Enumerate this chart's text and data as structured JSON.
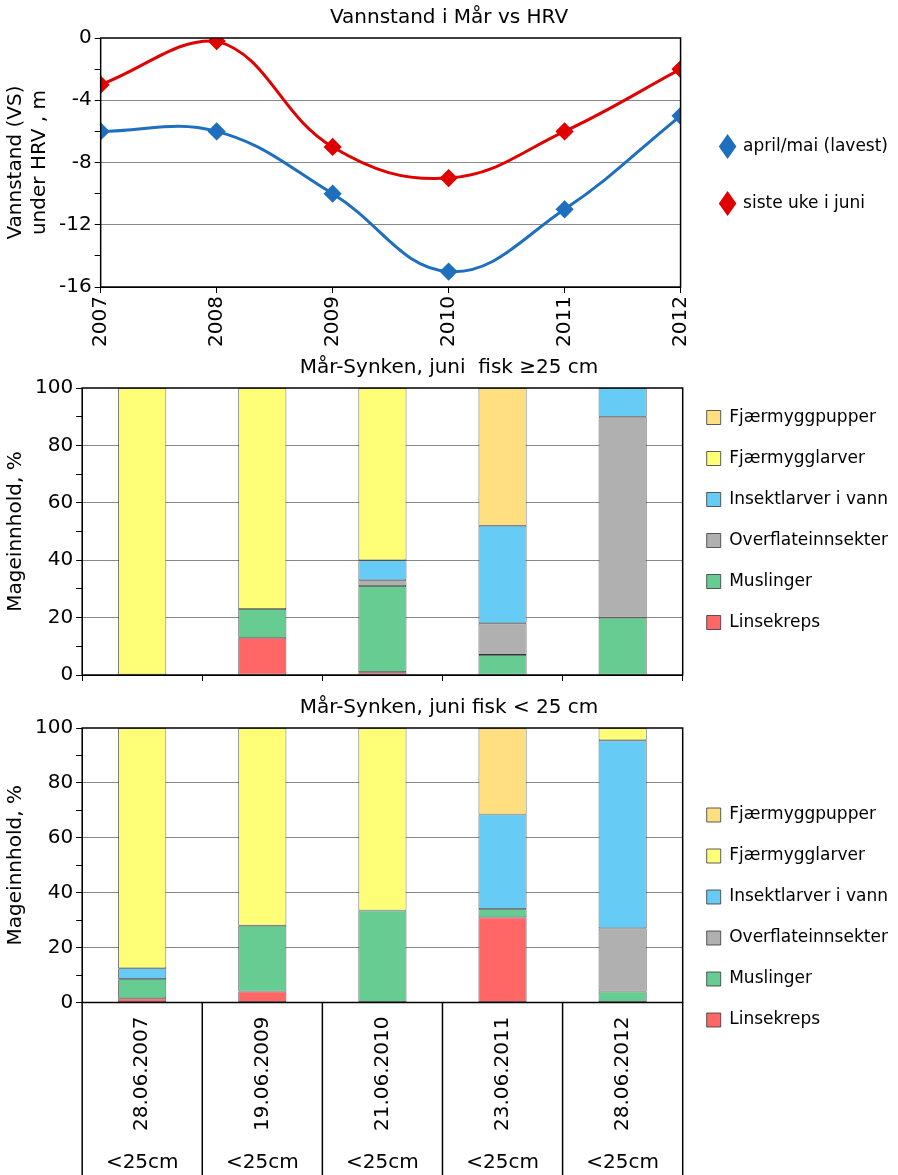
{
  "chart_data": [
    {
      "type": "line",
      "title": "Vannstand i Mår vs HRV",
      "ylabel": "Vannstand (VS) under HRV , m",
      "x": [
        2007,
        2008,
        2009,
        2010,
        2011,
        2012
      ],
      "xlim": [
        2007,
        2012
      ],
      "xticks": [
        2007,
        2008,
        2009,
        2010,
        2011,
        2012
      ],
      "ylim": [
        -16,
        0
      ],
      "yticks": [
        -16,
        {
          "value": -14,
          "label": null
        },
        -12,
        {
          "value": -10,
          "label": null
        },
        -8,
        {
          "value": -6,
          "label": null
        },
        -4,
        {
          "value": -2,
          "label": null
        },
        0
      ],
      "grid": "y",
      "legend": "right",
      "marker": "diamond",
      "line_style": "solid",
      "series": [
        {
          "name": "april/mai (lavest)",
          "color": "#1f6fbf",
          "values": [
            -6,
            -6,
            -10,
            -15,
            -11,
            -5
          ]
        },
        {
          "name": "siste uke i juni",
          "color": "#e00000",
          "values": [
            -3,
            -0.2,
            -7,
            -9,
            -6,
            -2
          ]
        }
      ]
    },
    {
      "type": "bar",
      "stacked": true,
      "title": "Mår-Synken, juni  fisk ≥25 cm",
      "ylabel": "Mageinnhold, %",
      "categories": [
        null,
        null,
        null,
        null,
        null
      ],
      "tick_labels": "y",
      "ylim": [
        0,
        100
      ],
      "yticks": [
        0,
        {
          "value": 10,
          "label": null
        },
        20,
        {
          "value": 30,
          "label": null
        },
        40,
        {
          "value": 50,
          "label": null
        },
        60,
        {
          "value": 70,
          "label": null
        },
        80,
        {
          "value": 90,
          "label": null
        },
        100
      ],
      "grid": "y",
      "legend": "right",
      "series": [
        {
          "name": "Linsekreps",
          "color": "#ff6666",
          "values": [
            0,
            13,
            1,
            0,
            0
          ]
        },
        {
          "name": "Muslinger",
          "color": "#66cc91",
          "values": [
            0,
            10,
            30,
            7,
            20
          ]
        },
        {
          "name": "Overflateinnsekter",
          "color": "#b0b0b0",
          "values": [
            0,
            0,
            2,
            11,
            70
          ]
        },
        {
          "name": "Insektlarver i vann",
          "color": "#66ccf5",
          "values": [
            0,
            0,
            7,
            34,
            10
          ]
        },
        {
          "name": "Fjærmygglarver",
          "color": "#ffff77",
          "values": [
            100,
            77,
            60,
            0,
            0
          ]
        },
        {
          "name": "Fjærmyggpupper",
          "color": "#ffdf80",
          "values": [
            0,
            0,
            0,
            48,
            0
          ]
        }
      ]
    },
    {
      "type": "bar",
      "stacked": true,
      "title": "Mår-Synken, juni fisk < 25 cm",
      "ylabel": "Mageinnhold, %",
      "categories": [
        "28.06.2007",
        "19.06.2009",
        "21.06.2010",
        "23.06.2011",
        "28.06.2012"
      ],
      "ylim": [
        0,
        100
      ],
      "yticks": [
        0,
        {
          "value": 10,
          "label": null
        },
        20,
        {
          "value": 30,
          "label": null
        },
        40,
        {
          "value": 50,
          "label": null
        },
        60,
        {
          "value": 70,
          "label": null
        },
        80,
        {
          "value": 90,
          "label": null
        },
        100
      ],
      "grid": "y",
      "legend": "right",
      "annotations": [
        "<25cm",
        "<25cm",
        "<25cm",
        "<25cm",
        "<25cm"
      ],
      "series": [
        {
          "name": "Linsekreps",
          "color": "#ff6666",
          "values": [
            1.5,
            4,
            0,
            31,
            0
          ]
        },
        {
          "name": "Muslinger",
          "color": "#66cc91",
          "values": [
            7,
            24,
            33.5,
            3,
            4
          ]
        },
        {
          "name": "Overflateinnsekter",
          "color": "#b0b0b0",
          "values": [
            0,
            0,
            0,
            0,
            23
          ]
        },
        {
          "name": "Insektlarver i vann",
          "color": "#66ccf5",
          "values": [
            4,
            0,
            0,
            34.5,
            68.5
          ]
        },
        {
          "name": "Fjærmygglarver",
          "color": "#ffff77",
          "values": [
            87.5,
            72,
            66.5,
            0,
            4.5
          ]
        },
        {
          "name": "Fjærmyggpupper",
          "color": "#ffdf80",
          "values": [
            0,
            0,
            0,
            31.5,
            0
          ]
        }
      ]
    }
  ]
}
